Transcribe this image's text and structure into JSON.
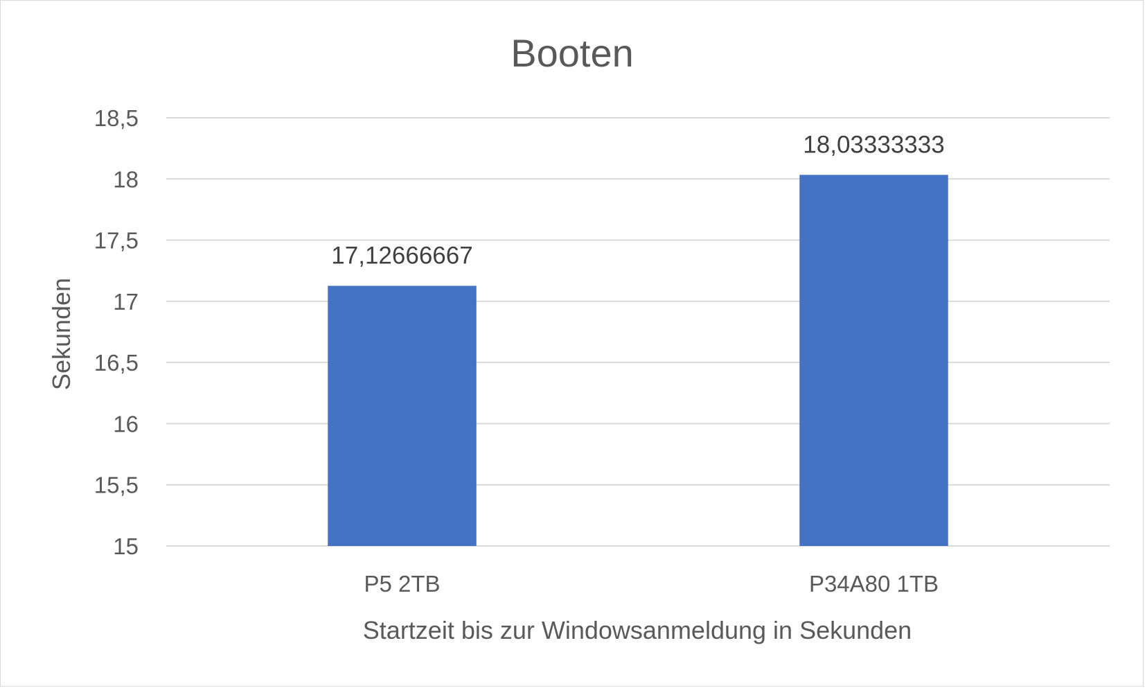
{
  "chart_data": {
    "type": "bar",
    "title": "Booten",
    "xlabel": "Startzeit bis zur Windowsanmeldung in Sekunden",
    "ylabel": "Sekunden",
    "categories": [
      "P5 2TB",
      "P34A80 1TB"
    ],
    "values": [
      17.12666667,
      18.03333333
    ],
    "data_labels": [
      "17,12666667",
      "18,03333333"
    ],
    "ylim": [
      15,
      18.5
    ],
    "yticks": [
      15,
      15.5,
      16,
      16.5,
      17,
      17.5,
      18,
      18.5
    ],
    "ytick_labels": [
      "15",
      "15,5",
      "16",
      "16,5",
      "17",
      "17,5",
      "18",
      "18,5"
    ],
    "grid": true,
    "legend": "none",
    "colors": {
      "bar": "#4472c4",
      "grid": "#d9d9d9",
      "text": "#595959",
      "data_label": "#404040"
    }
  }
}
